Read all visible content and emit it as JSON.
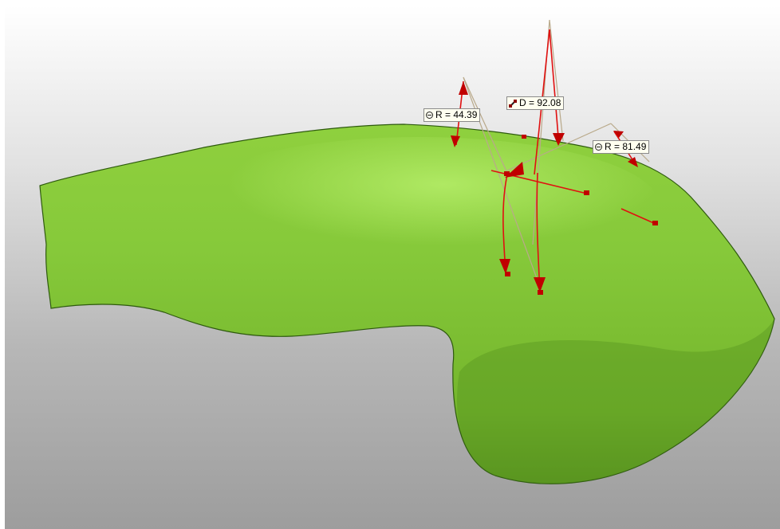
{
  "viewport": {
    "background_top": "#ffffff",
    "background_bottom": "#9d9d9d"
  },
  "model": {
    "color": "#7bc232",
    "highlight": "#a4e35a",
    "shadow": "#4f8d1c"
  },
  "annotations": {
    "color": "#e01010",
    "guide_color": "#b9a98a",
    "radius_left": {
      "icon": "radius-icon",
      "text": "R = 44.39"
    },
    "distance": {
      "icon": "distance-icon",
      "text": "D = 92.08"
    },
    "radius_right": {
      "icon": "radius-icon",
      "text": "R = 81.49"
    }
  }
}
